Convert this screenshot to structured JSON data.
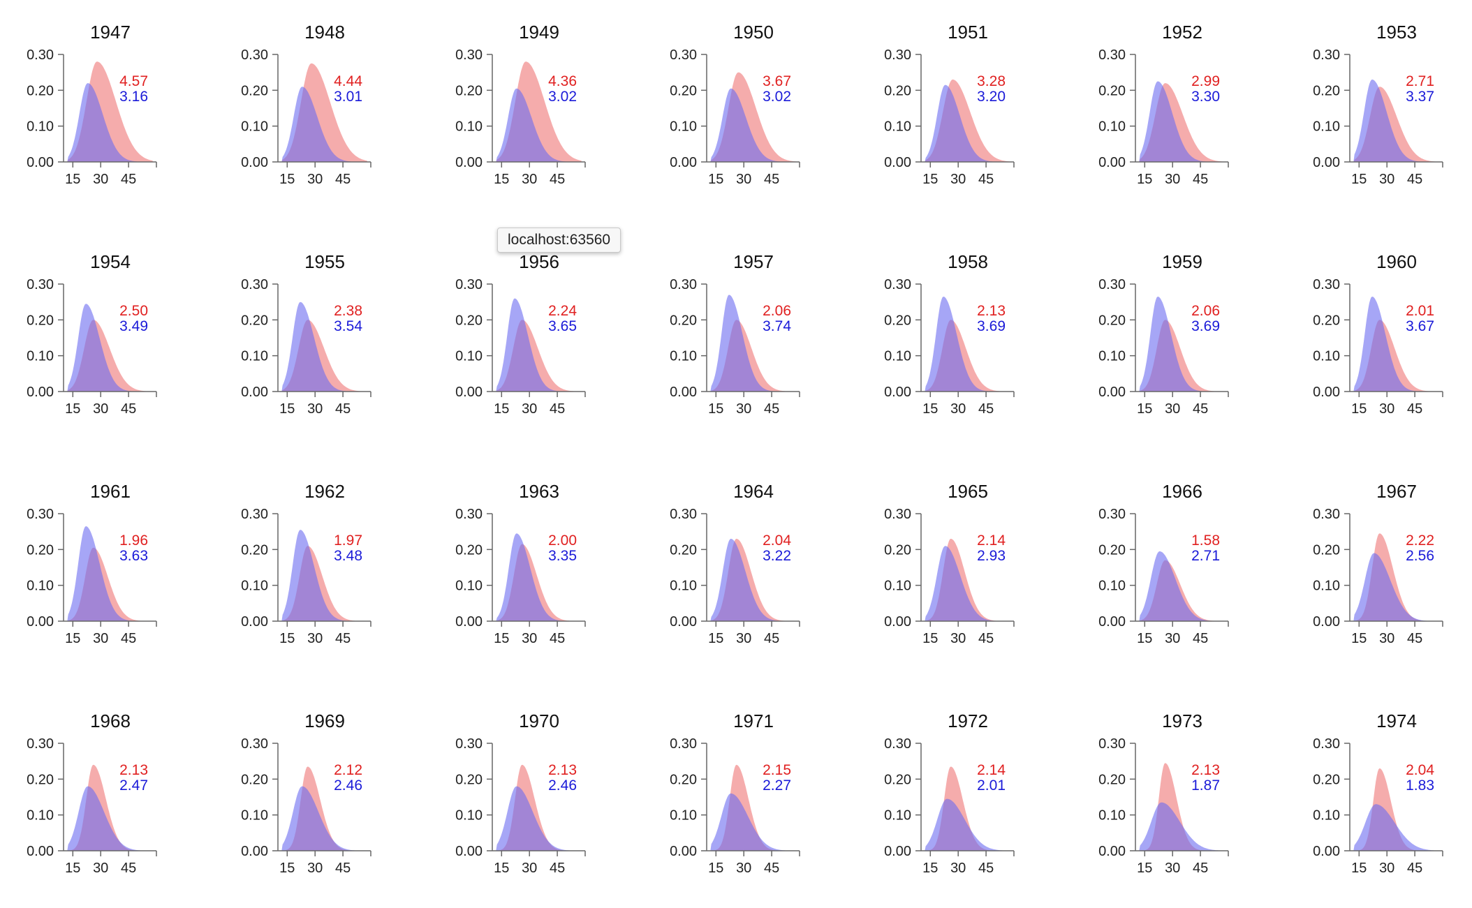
{
  "tooltip": "localhost:63560",
  "colors": {
    "red_area": "#f08080",
    "blue_area": "#6a6af0",
    "red_text": "#e02020",
    "blue_text": "#1a1ad8",
    "axis": "#666666"
  },
  "chart_data": {
    "type": "area",
    "layout": "small-multiples",
    "columns": 7,
    "xticks": [
      15,
      30,
      45
    ],
    "yticks": [
      0.0,
      0.1,
      0.2,
      0.3
    ],
    "xlim": [
      10,
      60
    ],
    "ylim": [
      0,
      0.3
    ],
    "panels": [
      {
        "title": "1947",
        "red_label": "4.57",
        "blue_label": "3.16",
        "red_peak": 0.28,
        "red_mode": 28,
        "red_sd": 7.5,
        "blue_peak": 0.22,
        "blue_mode": 23,
        "blue_sd": 6.0
      },
      {
        "title": "1948",
        "red_label": "4.44",
        "blue_label": "3.01",
        "red_peak": 0.275,
        "red_mode": 28,
        "red_sd": 7.5,
        "blue_peak": 0.21,
        "blue_mode": 23,
        "blue_sd": 6.0
      },
      {
        "title": "1949",
        "red_label": "4.36",
        "blue_label": "3.02",
        "red_peak": 0.28,
        "red_mode": 28,
        "red_sd": 7.5,
        "blue_peak": 0.205,
        "blue_mode": 23,
        "blue_sd": 6.0
      },
      {
        "title": "1950",
        "red_label": "3.67",
        "blue_label": "3.02",
        "red_peak": 0.25,
        "red_mode": 27,
        "red_sd": 7.0,
        "blue_peak": 0.205,
        "blue_mode": 23,
        "blue_sd": 6.0
      },
      {
        "title": "1951",
        "red_label": "3.28",
        "blue_label": "3.20",
        "red_peak": 0.23,
        "red_mode": 27,
        "red_sd": 7.0,
        "blue_peak": 0.215,
        "blue_mode": 23,
        "blue_sd": 5.8
      },
      {
        "title": "1952",
        "red_label": "2.99",
        "blue_label": "3.30",
        "red_peak": 0.22,
        "red_mode": 26,
        "red_sd": 7.0,
        "blue_peak": 0.225,
        "blue_mode": 22,
        "blue_sd": 5.8
      },
      {
        "title": "1953",
        "red_label": "2.71",
        "blue_label": "3.37",
        "red_peak": 0.21,
        "red_mode": 26,
        "red_sd": 6.8,
        "blue_peak": 0.23,
        "blue_mode": 22,
        "blue_sd": 5.8
      },
      {
        "title": "1954",
        "red_label": "2.50",
        "blue_label": "3.49",
        "red_peak": 0.2,
        "red_mode": 26,
        "red_sd": 6.5,
        "blue_peak": 0.245,
        "blue_mode": 22,
        "blue_sd": 5.5
      },
      {
        "title": "1955",
        "red_label": "2.38",
        "blue_label": "3.54",
        "red_peak": 0.2,
        "red_mode": 26,
        "red_sd": 6.5,
        "blue_peak": 0.25,
        "blue_mode": 22,
        "blue_sd": 5.5
      },
      {
        "title": "1956",
        "red_label": "2.24",
        "blue_label": "3.65",
        "red_peak": 0.2,
        "red_mode": 26,
        "red_sd": 6.3,
        "blue_peak": 0.26,
        "blue_mode": 22,
        "blue_sd": 5.3
      },
      {
        "title": "1957",
        "red_label": "2.06",
        "blue_label": "3.74",
        "red_peak": 0.2,
        "red_mode": 26,
        "red_sd": 6.0,
        "blue_peak": 0.27,
        "blue_mode": 22,
        "blue_sd": 5.3
      },
      {
        "title": "1958",
        "red_label": "2.13",
        "blue_label": "3.69",
        "red_peak": 0.2,
        "red_mode": 26,
        "red_sd": 6.0,
        "blue_peak": 0.265,
        "blue_mode": 22,
        "blue_sd": 5.3
      },
      {
        "title": "1959",
        "red_label": "2.06",
        "blue_label": "3.69",
        "red_peak": 0.2,
        "red_mode": 26,
        "red_sd": 6.0,
        "blue_peak": 0.265,
        "blue_mode": 22,
        "blue_sd": 5.3
      },
      {
        "title": "1960",
        "red_label": "2.01",
        "blue_label": "3.67",
        "red_peak": 0.2,
        "red_mode": 26,
        "red_sd": 6.0,
        "blue_peak": 0.265,
        "blue_mode": 22,
        "blue_sd": 5.3
      },
      {
        "title": "1961",
        "red_label": "1.96",
        "blue_label": "3.63",
        "red_peak": 0.205,
        "red_mode": 26,
        "red_sd": 5.8,
        "blue_peak": 0.265,
        "blue_mode": 22,
        "blue_sd": 5.5
      },
      {
        "title": "1962",
        "red_label": "1.97",
        "blue_label": "3.48",
        "red_peak": 0.21,
        "red_mode": 26,
        "red_sd": 5.8,
        "blue_peak": 0.255,
        "blue_mode": 22,
        "blue_sd": 5.5
      },
      {
        "title": "1963",
        "red_label": "2.00",
        "blue_label": "3.35",
        "red_peak": 0.215,
        "red_mode": 26,
        "red_sd": 5.8,
        "blue_peak": 0.245,
        "blue_mode": 23,
        "blue_sd": 5.5
      },
      {
        "title": "1964",
        "red_label": "2.04",
        "blue_label": "3.22",
        "red_peak": 0.23,
        "red_mode": 26,
        "red_sd": 5.8,
        "blue_peak": 0.23,
        "blue_mode": 23,
        "blue_sd": 5.8
      },
      {
        "title": "1965",
        "red_label": "2.14",
        "blue_label": "2.93",
        "red_peak": 0.23,
        "red_mode": 26,
        "red_sd": 5.5,
        "blue_peak": 0.21,
        "blue_mode": 23,
        "blue_sd": 6.0
      },
      {
        "title": "1966",
        "red_label": "1.58",
        "blue_label": "2.71",
        "red_peak": 0.17,
        "red_mode": 26,
        "red_sd": 6.0,
        "blue_peak": 0.195,
        "blue_mode": 23,
        "blue_sd": 6.3
      },
      {
        "title": "1967",
        "red_label": "2.22",
        "blue_label": "2.56",
        "red_peak": 0.245,
        "red_mode": 26,
        "red_sd": 5.3,
        "blue_peak": 0.19,
        "blue_mode": 23,
        "blue_sd": 6.5
      },
      {
        "title": "1968",
        "red_label": "2.13",
        "blue_label": "2.47",
        "red_peak": 0.24,
        "red_mode": 26,
        "red_sd": 5.0,
        "blue_peak": 0.18,
        "blue_mode": 23,
        "blue_sd": 6.5
      },
      {
        "title": "1969",
        "red_label": "2.12",
        "blue_label": "2.46",
        "red_peak": 0.235,
        "red_mode": 26,
        "red_sd": 5.0,
        "blue_peak": 0.18,
        "blue_mode": 23,
        "blue_sd": 6.5
      },
      {
        "title": "1970",
        "red_label": "2.13",
        "blue_label": "2.46",
        "red_peak": 0.24,
        "red_mode": 26,
        "red_sd": 5.0,
        "blue_peak": 0.18,
        "blue_mode": 23,
        "blue_sd": 6.5
      },
      {
        "title": "1971",
        "red_label": "2.15",
        "blue_label": "2.27",
        "red_peak": 0.24,
        "red_mode": 26,
        "red_sd": 4.8,
        "blue_peak": 0.16,
        "blue_mode": 23,
        "blue_sd": 6.8
      },
      {
        "title": "1972",
        "red_label": "2.14",
        "blue_label": "2.01",
        "red_peak": 0.235,
        "red_mode": 26,
        "red_sd": 4.8,
        "blue_peak": 0.145,
        "blue_mode": 24,
        "blue_sd": 7.0
      },
      {
        "title": "1973",
        "red_label": "2.13",
        "blue_label": "1.87",
        "red_peak": 0.245,
        "red_mode": 26,
        "red_sd": 4.5,
        "blue_peak": 0.135,
        "blue_mode": 24,
        "blue_sd": 7.3
      },
      {
        "title": "1974",
        "red_label": "2.04",
        "blue_label": "1.83",
        "red_peak": 0.23,
        "red_mode": 26,
        "red_sd": 4.5,
        "blue_peak": 0.13,
        "blue_mode": 24,
        "blue_sd": 7.5
      }
    ]
  }
}
